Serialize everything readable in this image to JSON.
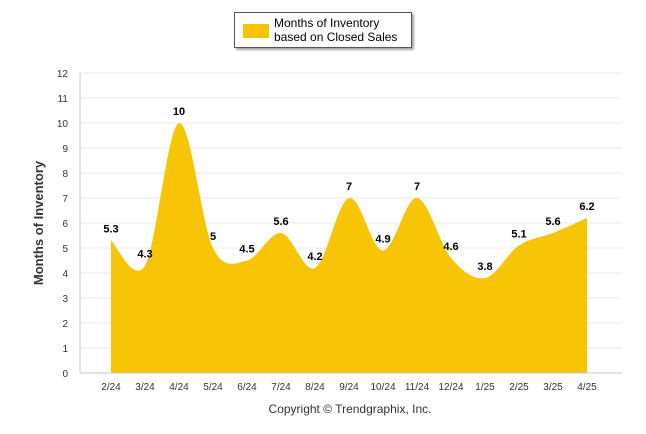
{
  "colors": {
    "area_fill": "#f7c406",
    "grid": "#e8e8e8",
    "axis": "#c9c9c9",
    "tick_text": "#333333",
    "label_text": "#000000"
  },
  "legend": {
    "label": "Months of Inventory based on Closed Sales"
  },
  "footer": {
    "copyright": "Copyright © Trendgraphix, Inc."
  },
  "chart_data": {
    "type": "area",
    "title": "",
    "xlabel": "",
    "ylabel": "Months of Inventory",
    "ylim": [
      0,
      12
    ],
    "yticks": [
      0,
      1,
      2,
      3,
      4,
      5,
      6,
      7,
      8,
      9,
      10,
      11,
      12
    ],
    "grid": true,
    "legend_position": "top-center",
    "categories": [
      "2/24",
      "3/24",
      "4/24",
      "5/24",
      "6/24",
      "7/24",
      "8/24",
      "9/24",
      "10/24",
      "11/24",
      "12/24",
      "1/25",
      "2/25",
      "3/25",
      "4/25"
    ],
    "series": [
      {
        "name": "Months of Inventory based on Closed Sales",
        "values": [
          5.3,
          4.3,
          10,
          5,
          4.5,
          5.6,
          4.2,
          7,
          4.9,
          7,
          4.6,
          3.8,
          5.1,
          5.6,
          6.2
        ],
        "data_labels": [
          "5.3",
          "4.3",
          "10",
          "5",
          "4.5",
          "5.6",
          "4.2",
          "7",
          "4.9",
          "7",
          "4.6",
          "3.8",
          "5.1",
          "5.6",
          "6.2"
        ]
      }
    ]
  }
}
